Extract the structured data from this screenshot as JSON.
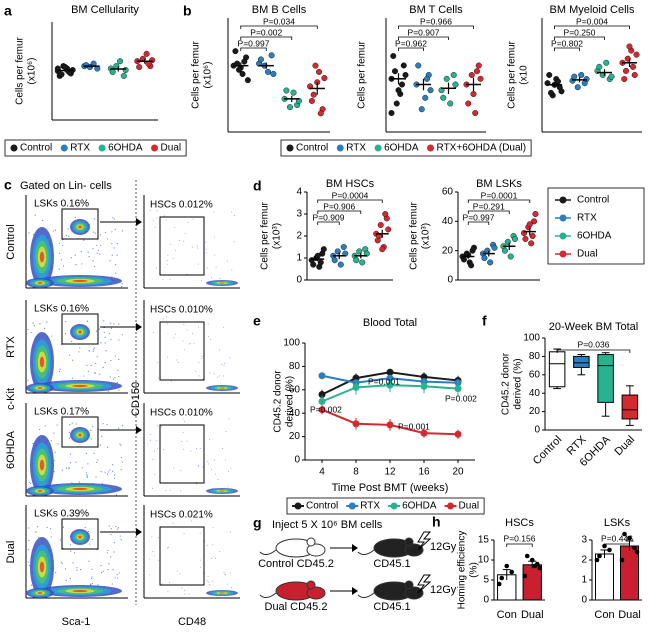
{
  "chart_data": [
    {
      "type": "dot",
      "label": "a",
      "title": "BM Cellularity",
      "y_label": [
        "Cells per femur",
        "(x10⁶)"
      ],
      "ylim": [
        0,
        20
      ],
      "legend": "bottom",
      "series": [
        {
          "name": "Control",
          "color": "#1a1a1a",
          "values": [
            10,
            9.5,
            10.5,
            11,
            9,
            10.2,
            9.8,
            10.8,
            9.3,
            10.5
          ],
          "mean": 10.1,
          "sem": 0.4
        },
        {
          "name": "RTX",
          "color": "#2b7fc0",
          "values": [
            11,
            10.5,
            11.5,
            10.8,
            11.2
          ],
          "mean": 11,
          "sem": 0.3
        },
        {
          "name": "6OHDA",
          "color": "#27b38f",
          "values": [
            10.5,
            9,
            12,
            11,
            9.8,
            10.2
          ],
          "mean": 10.4,
          "sem": 0.5
        },
        {
          "name": "Dual",
          "color": "#d42a2f",
          "values": [
            12,
            11,
            13.5,
            12.5,
            10.8,
            12.2,
            11.5
          ],
          "mean": 12,
          "sem": 0.5
        }
      ]
    },
    {
      "type": "dot",
      "label": "b",
      "title": "BM B Cells",
      "y_label": [
        "Cells per femur",
        "(x10⁶)"
      ],
      "ylim": [
        0,
        5.5
      ],
      "legend": "bottom",
      "annotations": [
        "P=0.034",
        "P=0.002",
        "P=0.997"
      ],
      "series": [
        {
          "name": "Control",
          "color": "#1a1a1a",
          "values": [
            3.2,
            3.6,
            2.8,
            3.0,
            3.9,
            2.5,
            3.4,
            3.1,
            3.3
          ],
          "mean": 3.2,
          "sem": 0.15
        },
        {
          "name": "RTX",
          "color": "#2b7fc0",
          "values": [
            3.3,
            3.7,
            2.9,
            3.2,
            3.5,
            2.8
          ],
          "mean": 3.2,
          "sem": 0.15
        },
        {
          "name": "6OHDA",
          "color": "#27b38f",
          "values": [
            1.6,
            1.3,
            1.9,
            1.2,
            2.0,
            1.5
          ],
          "mean": 1.6,
          "sem": 0.15
        },
        {
          "name": "RTX+6OHDA (Dual)",
          "color": "#d42a2f",
          "values": [
            2.2,
            1.1,
            2.9,
            3.2,
            1.5,
            2.6,
            0.9,
            2.4,
            1.8
          ],
          "mean": 2.1,
          "sem": 0.3
        }
      ]
    },
    {
      "type": "dot",
      "title": "BM T Cells",
      "y_label": [
        "Cells per femur"
      ],
      "ylim": [
        0,
        0.6
      ],
      "annotations": [
        "P=0.966",
        "P=0.907",
        "P=0.962"
      ],
      "series": [
        {
          "color": "#1a1a1a",
          "values": [
            0.28,
            0.35,
            0.2,
            0.15,
            0.4,
            0.3,
            0.25,
            0.22,
            0.32,
            0.1
          ],
          "mean": 0.28,
          "sem": 0.03
        },
        {
          "color": "#2b7fc0",
          "values": [
            0.25,
            0.3,
            0.18,
            0.12,
            0.35,
            0.22,
            0.28
          ],
          "mean": 0.25,
          "sem": 0.03
        },
        {
          "color": "#27b38f",
          "values": [
            0.22,
            0.3,
            0.15,
            0.28,
            0.18,
            0.25
          ],
          "mean": 0.23,
          "sem": 0.03
        },
        {
          "color": "#d42a2f",
          "values": [
            0.25,
            0.35,
            0.1,
            0.3,
            0.15,
            0.28,
            0.32,
            0.2
          ],
          "mean": 0.25,
          "sem": 0.035
        }
      ]
    },
    {
      "type": "dot",
      "title": "BM Myeloid Cells",
      "y_label": [
        "Cells per femur",
        "(x10"
      ],
      "ylim": [
        0,
        14
      ],
      "annotations": [
        "P=0.004",
        "P=0.250",
        "P=0.802"
      ],
      "series": [
        {
          "color": "#1a1a1a",
          "values": [
            6,
            5.5,
            6.5,
            4.5,
            7,
            5,
            6.2,
            5.8,
            4.8
          ],
          "mean": 5.8,
          "sem": 0.3
        },
        {
          "color": "#2b7fc0",
          "values": [
            6.3,
            6,
            7,
            5.5,
            6.8,
            6.5
          ],
          "mean": 6.4,
          "sem": 0.3
        },
        {
          "color": "#27b38f",
          "values": [
            7.5,
            6.5,
            8.5,
            7,
            8,
            6.8
          ],
          "mean": 7.3,
          "sem": 0.4
        },
        {
          "color": "#d42a2f",
          "values": [
            8.5,
            7,
            10,
            9,
            6.5,
            9.5,
            8,
            10.5,
            7.5
          ],
          "mean": 8.5,
          "sem": 0.5
        }
      ]
    },
    {
      "type": "dot",
      "label": "d",
      "title": "BM HSCs",
      "y_label": [
        "Cells per femur",
        "(x10³)"
      ],
      "ylim": [
        0,
        4
      ],
      "yticks": [
        0,
        1,
        2,
        3,
        4
      ],
      "legend": "right",
      "annotations": [
        "P=0.0004",
        "P=0.906",
        "P=0.909"
      ],
      "series": [
        {
          "name": "Control",
          "color": "#1a1a1a",
          "values": [
            0.9,
            1.2,
            0.6,
            1.0,
            0.7,
            1.4,
            0.8,
            1.1
          ],
          "mean": 0.95,
          "sem": 0.1
        },
        {
          "name": "RTX",
          "color": "#2b7fc0",
          "values": [
            1.1,
            1.5,
            0.7,
            1.3,
            0.9,
            1.2
          ],
          "mean": 1.1,
          "sem": 0.15
        },
        {
          "name": "6OHDA",
          "color": "#27b38f",
          "values": [
            1.1,
            1.4,
            0.8,
            1.3,
            0.9,
            1.2
          ],
          "mean": 1.1,
          "sem": 0.12
        },
        {
          "name": "Dual",
          "color": "#d42a2f",
          "values": [
            2.1,
            2.8,
            1.5,
            2.5,
            1.8,
            2.3,
            3.0,
            1.4,
            2.0
          ],
          "mean": 2.1,
          "sem": 0.18
        }
      ]
    },
    {
      "type": "dot",
      "title": "BM LSKs",
      "y_label": [
        "Cells per femur",
        "(x10³)"
      ],
      "ylim": [
        0,
        60
      ],
      "yticks": [
        0,
        20,
        40,
        60
      ],
      "annotations": [
        "P=0.0001",
        "P=0.291",
        "P=0.997"
      ],
      "series": [
        {
          "color": "#1a1a1a",
          "values": [
            16,
            20,
            12,
            18,
            14,
            22,
            10,
            17
          ],
          "mean": 16,
          "sem": 1.5
        },
        {
          "color": "#2b7fc0",
          "values": [
            18,
            24,
            12,
            20,
            15,
            22
          ],
          "mean": 18,
          "sem": 2
        },
        {
          "color": "#27b38f",
          "values": [
            23,
            30,
            16,
            26,
            20,
            28
          ],
          "mean": 23,
          "sem": 2.5
        },
        {
          "color": "#d42a2f",
          "values": [
            32,
            40,
            25,
            36,
            28,
            45,
            30,
            38
          ],
          "mean": 33,
          "sem": 2.5
        }
      ]
    },
    {
      "type": "line",
      "label": "e",
      "title": "Blood Total",
      "x_label": "Time Post BMT (weeks)",
      "y_label": [
        "CD45.2 donor",
        "derived (%)"
      ],
      "x": [
        4,
        8,
        12,
        16,
        20
      ],
      "xlim": [
        2,
        22
      ],
      "xticks": [
        4,
        8,
        12,
        16,
        20
      ],
      "ylim": [
        0,
        100
      ],
      "yticks": [
        0,
        20,
        40,
        60,
        80,
        100
      ],
      "legend": "bottom",
      "annotations": [
        "P=0.002",
        "P=0.001",
        "P=0.001",
        "P=0.002"
      ],
      "series": [
        {
          "name": "Control",
          "color": "#1a1a1a",
          "values": [
            56,
            70,
            75,
            71,
            68
          ],
          "errors": [
            4,
            4,
            3,
            4,
            4
          ]
        },
        {
          "name": "RTX",
          "color": "#2b7fc0",
          "values": [
            72,
            66,
            70,
            67,
            66
          ],
          "errors": [
            2,
            3,
            3,
            3,
            3
          ]
        },
        {
          "name": "6OHDA",
          "color": "#27b38f",
          "values": [
            50,
            62,
            64,
            63,
            61
          ],
          "errors": [
            5,
            6,
            6,
            6,
            7
          ]
        },
        {
          "name": "Dual",
          "color": "#d42a2f",
          "values": [
            43,
            31,
            30,
            23,
            22
          ],
          "errors": [
            4,
            5,
            5,
            4,
            4
          ]
        }
      ]
    },
    {
      "type": "box",
      "label": "f",
      "title": "20-Week BM Total",
      "y_label": [
        "CD45.2 donor",
        "derived (%)"
      ],
      "categories": [
        "Control",
        "RTX",
        "6OHDA",
        "Dual"
      ],
      "colors": [
        "#ffffff",
        "#2b7fc0",
        "#27b38f",
        "#d42a2f"
      ],
      "boxes": [
        [
          45,
          47,
          72,
          85,
          88
        ],
        [
          60,
          68,
          73,
          80,
          82
        ],
        [
          15,
          30,
          70,
          82,
          84
        ],
        [
          5,
          12,
          22,
          38,
          48
        ]
      ],
      "ylim": [
        0,
        100
      ],
      "yticks": [
        0,
        20,
        40,
        60,
        80,
        100
      ],
      "annotations": [
        "P=0.036"
      ]
    },
    {
      "type": "bar",
      "label": "h",
      "title": "HSCs",
      "y_label": [
        "Homing efficiency",
        "(%)"
      ],
      "categories": [
        "Con",
        "Dual"
      ],
      "colors": [
        "#ffffff",
        "#c8202f"
      ],
      "values": [
        6.3,
        8.8
      ],
      "errors": [
        1.3,
        0.9
      ],
      "points": [
        [
          4,
          7,
          8.5,
          5.5
        ],
        [
          6,
          9,
          10,
          11,
          8,
          8.5
        ]
      ],
      "ylim": [
        0,
        15
      ],
      "yticks": [
        0,
        5,
        10,
        15
      ],
      "annotations": [
        "P=0.156"
      ]
    },
    {
      "type": "bar",
      "title": "LSKs",
      "categories": [
        "Con",
        "Dual"
      ],
      "colors": [
        "#ffffff",
        "#c8202f"
      ],
      "values": [
        2.3,
        2.7
      ],
      "errors": [
        0.2,
        0.25
      ],
      "points": [
        [
          2,
          2.5,
          2.7,
          2.2
        ],
        [
          2,
          2.6,
          3.1,
          3.3,
          2.4
        ]
      ],
      "ylim": [
        0,
        3
      ],
      "yticks": [
        0,
        1,
        2,
        3
      ],
      "annotations": [
        "P=0.446"
      ]
    }
  ],
  "flow_panel": {
    "label": "c",
    "title": "Gated on Lin- cells",
    "y_labels": [
      "c-Kit",
      "CD150"
    ],
    "x_labels": [
      "Sca-1",
      "CD48"
    ],
    "rows": [
      {
        "name": "Control",
        "lsk": "LSKs 0.16%",
        "hsc": "HSCs 0.012%"
      },
      {
        "name": "RTX",
        "lsk": "LSKs 0.16%",
        "hsc": "HSCs 0.010%"
      },
      {
        "name": "6OHDA",
        "lsk": "LSKs 0.17%",
        "hsc": "HSCs 0.010%"
      },
      {
        "name": "Dual",
        "lsk": "LSKs 0.39%",
        "hsc": "HSCs 0.021%"
      }
    ]
  },
  "diagram": {
    "label": "g",
    "header": "Inject 5 X 10⁶ BM cells",
    "rows": [
      {
        "donor": "Control CD45.2",
        "recipient": "CD45.1",
        "dose": "12Gy"
      },
      {
        "donor": "Dual CD45.2",
        "recipient": "CD45.1",
        "dose": "12Gy"
      }
    ]
  }
}
